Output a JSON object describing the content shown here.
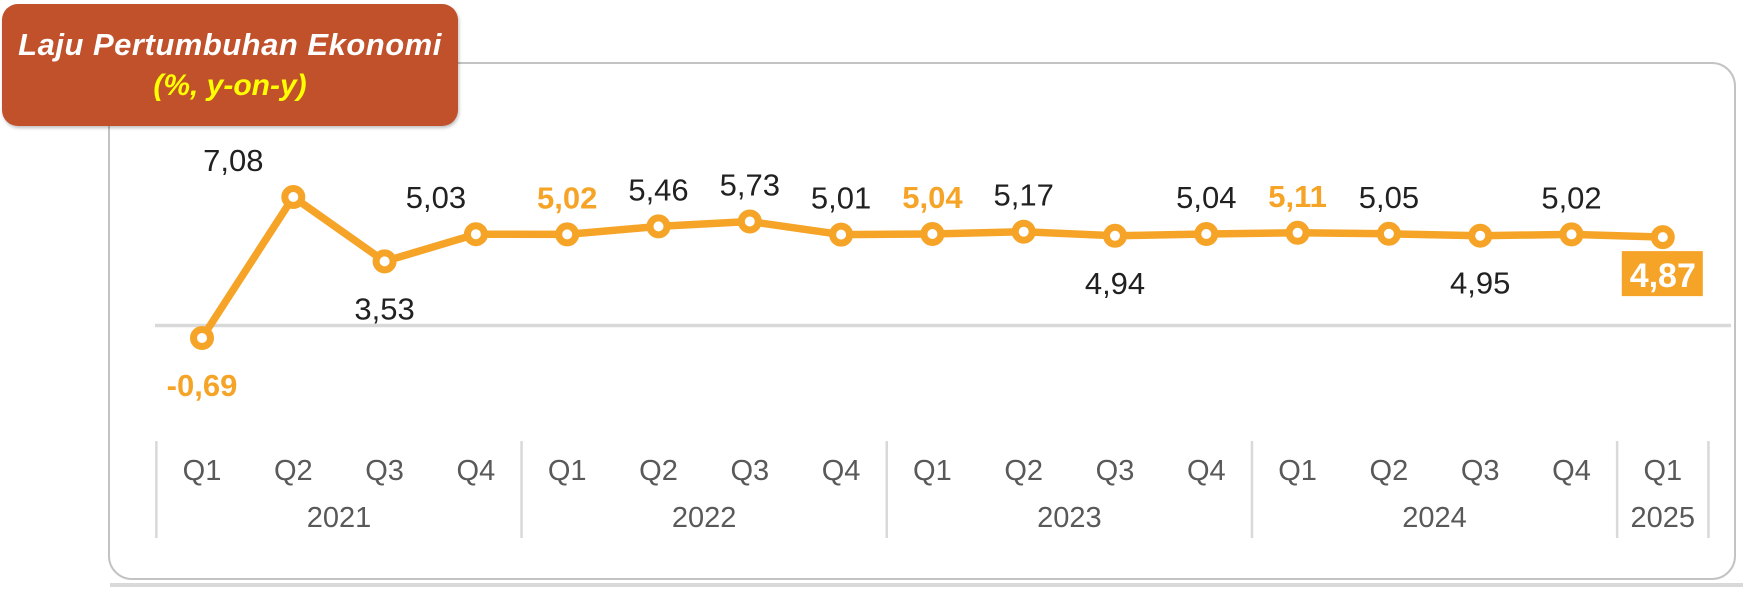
{
  "banner": {
    "line1": "Laju Pertumbuhan Ekonomi",
    "line2": "(%, y-on-y)",
    "bg_color": "#c1512b",
    "line1_color": "#ffffff",
    "line2_color": "#ffff00"
  },
  "chart_data": {
    "type": "line",
    "title": "Laju Pertumbuhan Ekonomi (%, y-on-y)",
    "unit": "percent, year-on-year",
    "legend_position": "none",
    "grid": "zero-baseline-only",
    "ylim": [
      -2,
      8
    ],
    "categories": [
      "Q1 2021",
      "Q2 2021",
      "Q3 2021",
      "Q4 2021",
      "Q1 2022",
      "Q2 2022",
      "Q3 2022",
      "Q4 2022",
      "Q1 2023",
      "Q2 2023",
      "Q3 2023",
      "Q4 2023",
      "Q1 2024",
      "Q2 2024",
      "Q3 2024",
      "Q4 2024",
      "Q1 2025"
    ],
    "series": [
      {
        "name": "Laju Pertumbuhan Ekonomi (%, y-on-y)",
        "values": [
          -0.69,
          7.08,
          3.53,
          5.03,
          5.02,
          5.46,
          5.73,
          5.01,
          5.04,
          5.17,
          4.94,
          5.04,
          5.11,
          5.05,
          4.95,
          5.02,
          4.87
        ]
      }
    ],
    "points": [
      {
        "quarter": "Q1",
        "year": "2021",
        "value": -0.69,
        "label": "-0,69",
        "label_position": "below",
        "label_style": "accent"
      },
      {
        "quarter": "Q2",
        "year": "2021",
        "value": 7.08,
        "label": "7,08",
        "label_position": "above",
        "label_style": "normal",
        "label_dx": -60
      },
      {
        "quarter": "Q3",
        "year": "2021",
        "value": 3.53,
        "label": "3,53",
        "label_position": "below",
        "label_style": "normal"
      },
      {
        "quarter": "Q4",
        "year": "2021",
        "value": 5.03,
        "label": "5,03",
        "label_position": "above",
        "label_style": "normal",
        "label_dx": -40
      },
      {
        "quarter": "Q1",
        "year": "2022",
        "value": 5.02,
        "label": "5,02",
        "label_position": "above",
        "label_style": "accent"
      },
      {
        "quarter": "Q2",
        "year": "2022",
        "value": 5.46,
        "label": "5,46",
        "label_position": "above",
        "label_style": "normal"
      },
      {
        "quarter": "Q3",
        "year": "2022",
        "value": 5.73,
        "label": "5,73",
        "label_position": "above",
        "label_style": "normal"
      },
      {
        "quarter": "Q4",
        "year": "2022",
        "value": 5.01,
        "label": "5,01",
        "label_position": "above",
        "label_style": "normal"
      },
      {
        "quarter": "Q1",
        "year": "2023",
        "value": 5.04,
        "label": "5,04",
        "label_position": "above",
        "label_style": "accent"
      },
      {
        "quarter": "Q2",
        "year": "2023",
        "value": 5.17,
        "label": "5,17",
        "label_position": "above",
        "label_style": "normal"
      },
      {
        "quarter": "Q3",
        "year": "2023",
        "value": 4.94,
        "label": "4,94",
        "label_position": "below",
        "label_style": "normal"
      },
      {
        "quarter": "Q4",
        "year": "2023",
        "value": 5.04,
        "label": "5,04",
        "label_position": "above",
        "label_style": "normal"
      },
      {
        "quarter": "Q1",
        "year": "2024",
        "value": 5.11,
        "label": "5,11",
        "label_position": "above",
        "label_style": "accent"
      },
      {
        "quarter": "Q2",
        "year": "2024",
        "value": 5.05,
        "label": "5,05",
        "label_position": "above",
        "label_style": "normal"
      },
      {
        "quarter": "Q3",
        "year": "2024",
        "value": 4.95,
        "label": "4,95",
        "label_position": "below",
        "label_style": "normal"
      },
      {
        "quarter": "Q4",
        "year": "2024",
        "value": 5.02,
        "label": "5,02",
        "label_position": "above",
        "label_style": "normal"
      },
      {
        "quarter": "Q1",
        "year": "2025",
        "value": 4.87,
        "label": "4,87",
        "label_position": "badge",
        "label_style": "badge"
      }
    ],
    "year_groups": [
      {
        "label": "2021",
        "count": 4
      },
      {
        "label": "2022",
        "count": 4
      },
      {
        "label": "2023",
        "count": 4
      },
      {
        "label": "2024",
        "count": 4
      },
      {
        "label": "2025",
        "count": 1
      }
    ],
    "colors": {
      "line": "#f6a427",
      "marker_fill": "#ffffff",
      "accent_label": "#f6a427",
      "normal_label": "#212121",
      "badge_bg": "#f6a427",
      "badge_text": "#ffffff",
      "baseline": "#d9d9d9",
      "separator": "#d9d9d9",
      "axis_text": "#595959"
    }
  }
}
